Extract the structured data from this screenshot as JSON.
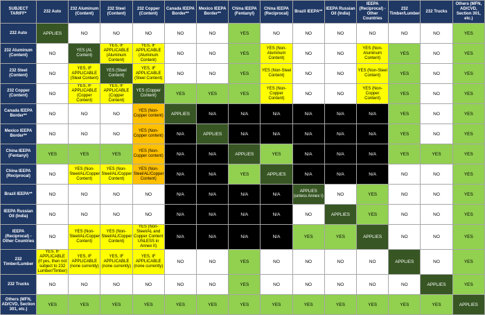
{
  "table": {
    "corner": "SUBJECT TARIFF*",
    "header_color": "#1f3864",
    "columns": [
      "232 Auto",
      "232 Aluminum (Content)",
      "232 Steel (Content)",
      "232 Copper (Content)",
      "Canada IEEPA Border**",
      "Mexico IEEPA Border**",
      "China IEEPA (Fentanyl)",
      "China IEEPA (Reciprocal)",
      "Brazil IEEPA**",
      "IEEPA Russian Oil (India)",
      "IEEPA (Reciprocal) - Other Countries",
      "232 Timber/Lumber",
      "232 Trucks",
      "Others (MFN, AD/CVD, Section 301, etc.)"
    ],
    "rows": [
      {
        "label": "232 Auto",
        "cells": [
          {
            "text": "APPLIES",
            "color": "#375623"
          },
          {
            "text": "NO",
            "color": "#ffffff"
          },
          {
            "text": "NO",
            "color": "#ffffff"
          },
          {
            "text": "NO",
            "color": "#ffffff"
          },
          {
            "text": "NO",
            "color": "#ffffff"
          },
          {
            "text": "NO",
            "color": "#ffffff"
          },
          {
            "text": "YES",
            "color": "#92d050"
          },
          {
            "text": "NO",
            "color": "#ffffff"
          },
          {
            "text": "NO",
            "color": "#ffffff"
          },
          {
            "text": "NO",
            "color": "#ffffff"
          },
          {
            "text": "NO",
            "color": "#ffffff"
          },
          {
            "text": "NO",
            "color": "#ffffff"
          },
          {
            "text": "NO",
            "color": "#ffffff"
          },
          {
            "text": "YES",
            "color": "#92d050"
          }
        ]
      },
      {
        "label": "232 Aluminum (Content)",
        "cells": [
          {
            "text": "NO",
            "color": "#ffffff"
          },
          {
            "text": "YES (AL Content)",
            "color": "#375623"
          },
          {
            "text": "YES, IF APPLICABLE (Aluminum Content)",
            "color": "#ffff00"
          },
          {
            "text": "YES, IF APPLICABLE (Aluminum Content)",
            "color": "#ffff00"
          },
          {
            "text": "NO",
            "color": "#ffffff"
          },
          {
            "text": "NO",
            "color": "#ffffff"
          },
          {
            "text": "YES",
            "color": "#92d050"
          },
          {
            "text": "YES (Non-Aluminum Content)",
            "color": "#ffff00"
          },
          {
            "text": "NO",
            "color": "#ffffff"
          },
          {
            "text": "NO",
            "color": "#ffffff"
          },
          {
            "text": "YES (Non-Aluminum Content)",
            "color": "#ffff00"
          },
          {
            "text": "YES",
            "color": "#92d050"
          },
          {
            "text": "NO",
            "color": "#ffffff"
          },
          {
            "text": "YES",
            "color": "#92d050"
          }
        ]
      },
      {
        "label": "232 Steel (Content)",
        "cells": [
          {
            "text": "NO",
            "color": "#ffffff"
          },
          {
            "text": "YES, IF APPLICABLE (Steel Content)",
            "color": "#ffff00"
          },
          {
            "text": "YES (Steel Content)",
            "color": "#375623"
          },
          {
            "text": "YES, IF APPLICABLE (Steel Content)",
            "color": "#ffff00"
          },
          {
            "text": "NO",
            "color": "#ffffff"
          },
          {
            "text": "NO",
            "color": "#ffffff"
          },
          {
            "text": "YES",
            "color": "#92d050"
          },
          {
            "text": "YES (Non-Steel Content)",
            "color": "#ffff00"
          },
          {
            "text": "NO",
            "color": "#ffffff"
          },
          {
            "text": "NO",
            "color": "#ffffff"
          },
          {
            "text": "YES (Non-Steel Content)",
            "color": "#ffff00"
          },
          {
            "text": "YES",
            "color": "#92d050"
          },
          {
            "text": "NO",
            "color": "#ffffff"
          },
          {
            "text": "YES",
            "color": "#92d050"
          }
        ]
      },
      {
        "label": "232 Copper (Content)",
        "cells": [
          {
            "text": "NO",
            "color": "#ffffff"
          },
          {
            "text": "YES, IF APPLICABLE (Copper Content)",
            "color": "#ffff00"
          },
          {
            "text": "YES, IF APPLICABLE (Copper Content)",
            "color": "#ffff00"
          },
          {
            "text": "YES (Copper Content)",
            "color": "#375623"
          },
          {
            "text": "YES",
            "color": "#92d050"
          },
          {
            "text": "YES",
            "color": "#92d050"
          },
          {
            "text": "YES",
            "color": "#92d050"
          },
          {
            "text": "YES (Non-Copper Content)",
            "color": "#ffff00"
          },
          {
            "text": "NO",
            "color": "#ffffff"
          },
          {
            "text": "NO",
            "color": "#ffffff"
          },
          {
            "text": "YES (Non-Copper Content)",
            "color": "#ffff00"
          },
          {
            "text": "YES",
            "color": "#92d050"
          },
          {
            "text": "NO",
            "color": "#ffffff"
          },
          {
            "text": "YES",
            "color": "#92d050"
          }
        ]
      },
      {
        "label": "Canada IEEPA Border**",
        "cells": [
          {
            "text": "NO",
            "color": "#ffffff"
          },
          {
            "text": "NO",
            "color": "#ffffff"
          },
          {
            "text": "NO",
            "color": "#ffffff"
          },
          {
            "text": "YES (Non-Copper content)",
            "color": "#ffc000"
          },
          {
            "text": "APPLIES",
            "color": "#375623"
          },
          {
            "text": "N/A",
            "color": "#000000"
          },
          {
            "text": "N/A",
            "color": "#000000"
          },
          {
            "text": "N/A",
            "color": "#000000"
          },
          {
            "text": "N/A",
            "color": "#000000"
          },
          {
            "text": "N/A",
            "color": "#000000"
          },
          {
            "text": "N/A",
            "color": "#000000"
          },
          {
            "text": "YES",
            "color": "#92d050"
          },
          {
            "text": "NO",
            "color": "#ffffff"
          },
          {
            "text": "YES",
            "color": "#92d050"
          }
        ]
      },
      {
        "label": "Mexico IEEPA Border**",
        "cells": [
          {
            "text": "NO",
            "color": "#ffffff"
          },
          {
            "text": "NO",
            "color": "#ffffff"
          },
          {
            "text": "NO",
            "color": "#ffffff"
          },
          {
            "text": "YES (Non-Copper content)",
            "color": "#ffc000"
          },
          {
            "text": "N/A",
            "color": "#000000"
          },
          {
            "text": "APPLIES",
            "color": "#375623"
          },
          {
            "text": "N/A",
            "color": "#000000"
          },
          {
            "text": "N/A",
            "color": "#000000"
          },
          {
            "text": "N/A",
            "color": "#000000"
          },
          {
            "text": "N/A",
            "color": "#000000"
          },
          {
            "text": "N/A",
            "color": "#000000"
          },
          {
            "text": "YES",
            "color": "#92d050"
          },
          {
            "text": "NO",
            "color": "#ffffff"
          },
          {
            "text": "YES",
            "color": "#92d050"
          }
        ]
      },
      {
        "label": "China IEEPA (Fentanyl)",
        "cells": [
          {
            "text": "YES",
            "color": "#92d050"
          },
          {
            "text": "YES",
            "color": "#92d050"
          },
          {
            "text": "YES",
            "color": "#92d050"
          },
          {
            "text": "YES (Non-Copper content)",
            "color": "#ffc000"
          },
          {
            "text": "N/A",
            "color": "#000000"
          },
          {
            "text": "N/A",
            "color": "#000000"
          },
          {
            "text": "APPLIES",
            "color": "#375623"
          },
          {
            "text": "YES",
            "color": "#92d050"
          },
          {
            "text": "N/A",
            "color": "#000000"
          },
          {
            "text": "N/A",
            "color": "#000000"
          },
          {
            "text": "N/A",
            "color": "#000000"
          },
          {
            "text": "YES",
            "color": "#92d050"
          },
          {
            "text": "YES",
            "color": "#92d050"
          },
          {
            "text": "YES",
            "color": "#92d050"
          }
        ]
      },
      {
        "label": "China IEEPA (Reciprocal)",
        "cells": [
          {
            "text": "NO",
            "color": "#ffffff"
          },
          {
            "text": "YES (Non-Steel/AL/Copper Content)",
            "color": "#ffff00"
          },
          {
            "text": "YES (Non-Steel/AL/Copper Content)",
            "color": "#ffff00"
          },
          {
            "text": "YES (Non-Steel/AL/Copper Content)",
            "color": "#ffc000"
          },
          {
            "text": "N/A",
            "color": "#000000"
          },
          {
            "text": "N/A",
            "color": "#000000"
          },
          {
            "text": "YES",
            "color": "#92d050"
          },
          {
            "text": "APPLIES",
            "color": "#375623"
          },
          {
            "text": "N/A",
            "color": "#000000"
          },
          {
            "text": "N/A",
            "color": "#000000"
          },
          {
            "text": "N/A",
            "color": "#000000"
          },
          {
            "text": "NO",
            "color": "#ffffff"
          },
          {
            "text": "NO",
            "color": "#ffffff"
          },
          {
            "text": "YES",
            "color": "#92d050"
          }
        ]
      },
      {
        "label": "Brazil IEEPA**",
        "cells": [
          {
            "text": "NO",
            "color": "#ffffff"
          },
          {
            "text": "NO",
            "color": "#ffffff"
          },
          {
            "text": "NO",
            "color": "#ffffff"
          },
          {
            "text": "NO",
            "color": "#ffffff"
          },
          {
            "text": "N/A",
            "color": "#000000"
          },
          {
            "text": "N/A",
            "color": "#000000"
          },
          {
            "text": "N/A",
            "color": "#000000"
          },
          {
            "text": "N/A",
            "color": "#000000"
          },
          {
            "text": "APPLIES (unless Annex I)",
            "color": "#375623"
          },
          {
            "text": "NO",
            "color": "#ffffff"
          },
          {
            "text": "YES",
            "color": "#92d050"
          },
          {
            "text": "NO",
            "color": "#ffffff"
          },
          {
            "text": "NO",
            "color": "#ffffff"
          },
          {
            "text": "YES",
            "color": "#92d050"
          }
        ]
      },
      {
        "label": "IEEPA Russian Oil (India)",
        "cells": [
          {
            "text": "NO",
            "color": "#ffffff"
          },
          {
            "text": "NO",
            "color": "#ffffff"
          },
          {
            "text": "NO",
            "color": "#ffffff"
          },
          {
            "text": "NO",
            "color": "#ffffff"
          },
          {
            "text": "N/A",
            "color": "#000000"
          },
          {
            "text": "N/A",
            "color": "#000000"
          },
          {
            "text": "N/A",
            "color": "#000000"
          },
          {
            "text": "N/A",
            "color": "#000000"
          },
          {
            "text": "NO",
            "color": "#ffffff"
          },
          {
            "text": "APPLIES",
            "color": "#375623"
          },
          {
            "text": "YES",
            "color": "#92d050"
          },
          {
            "text": "NO",
            "color": "#ffffff"
          },
          {
            "text": "NO",
            "color": "#ffffff"
          },
          {
            "text": "YES",
            "color": "#92d050"
          }
        ]
      },
      {
        "label": "IEEPA (Reciprocal) - Other Countries",
        "cells": [
          {
            "text": "NO",
            "color": "#ffffff"
          },
          {
            "text": "YES (Non-Steel/AL/Copper Content)",
            "color": "#ffff00"
          },
          {
            "text": "YES (Non-Steel/AL/Copper Content)",
            "color": "#ffff00"
          },
          {
            "text": "YES (Non-Steel/AL and Copper Content UNLESS in Annex II)",
            "color": "#ffff00"
          },
          {
            "text": "N/A",
            "color": "#000000"
          },
          {
            "text": "N/A",
            "color": "#000000"
          },
          {
            "text": "N/A",
            "color": "#000000"
          },
          {
            "text": "N/A",
            "color": "#000000"
          },
          {
            "text": "YES",
            "color": "#92d050"
          },
          {
            "text": "YES",
            "color": "#92d050"
          },
          {
            "text": "APPLIES",
            "color": "#375623"
          },
          {
            "text": "NO",
            "color": "#ffffff"
          },
          {
            "text": "NO",
            "color": "#ffffff"
          },
          {
            "text": "YES",
            "color": "#92d050"
          }
        ]
      },
      {
        "label": "232 Timber/Lumber",
        "cells": [
          {
            "text": "YES, IF APPLICABLE (If yes, then not subject to 232 Lumber/Timber)",
            "color": "#ffff00"
          },
          {
            "text": "YES, IF APPLICABLE (none currently)",
            "color": "#ffff00"
          },
          {
            "text": "YES, IF APPLICABLE (none currently)",
            "color": "#ffff00"
          },
          {
            "text": "YES, IF APPLICABLE (none currently)",
            "color": "#ffff00"
          },
          {
            "text": "NO",
            "color": "#ffffff"
          },
          {
            "text": "NO",
            "color": "#ffffff"
          },
          {
            "text": "YES",
            "color": "#92d050"
          },
          {
            "text": "NO",
            "color": "#ffffff"
          },
          {
            "text": "NO",
            "color": "#ffffff"
          },
          {
            "text": "NO",
            "color": "#ffffff"
          },
          {
            "text": "NO",
            "color": "#ffffff"
          },
          {
            "text": "APPLIES",
            "color": "#375623"
          },
          {
            "text": "NO",
            "color": "#ffffff"
          },
          {
            "text": "YES",
            "color": "#92d050"
          }
        ]
      },
      {
        "label": "232 Trucks",
        "cells": [
          {
            "text": "NO",
            "color": "#ffffff"
          },
          {
            "text": "NO",
            "color": "#ffffff"
          },
          {
            "text": "NO",
            "color": "#ffffff"
          },
          {
            "text": "NO",
            "color": "#ffffff"
          },
          {
            "text": "NO",
            "color": "#ffffff"
          },
          {
            "text": "NO",
            "color": "#ffffff"
          },
          {
            "text": "YES",
            "color": "#92d050"
          },
          {
            "text": "NO",
            "color": "#ffffff"
          },
          {
            "text": "NO",
            "color": "#ffffff"
          },
          {
            "text": "NO",
            "color": "#ffffff"
          },
          {
            "text": "NO",
            "color": "#ffffff"
          },
          {
            "text": "NO",
            "color": "#ffffff"
          },
          {
            "text": "APPLIES",
            "color": "#375623"
          },
          {
            "text": "YES",
            "color": "#92d050"
          }
        ]
      },
      {
        "label": "Others (MFN, AD/CVD, Section 301, etc.)",
        "cells": [
          {
            "text": "YES",
            "color": "#92d050"
          },
          {
            "text": "YES",
            "color": "#92d050"
          },
          {
            "text": "YES",
            "color": "#92d050"
          },
          {
            "text": "YES",
            "color": "#92d050"
          },
          {
            "text": "YES",
            "color": "#92d050"
          },
          {
            "text": "YES",
            "color": "#92d050"
          },
          {
            "text": "YES",
            "color": "#92d050"
          },
          {
            "text": "YES",
            "color": "#92d050"
          },
          {
            "text": "YES",
            "color": "#92d050"
          },
          {
            "text": "YES",
            "color": "#92d050"
          },
          {
            "text": "YES",
            "color": "#92d050"
          },
          {
            "text": "YES",
            "color": "#92d050"
          },
          {
            "text": "YES",
            "color": "#92d050"
          },
          {
            "text": "APPLIES",
            "color": "#375623"
          }
        ]
      }
    ]
  }
}
